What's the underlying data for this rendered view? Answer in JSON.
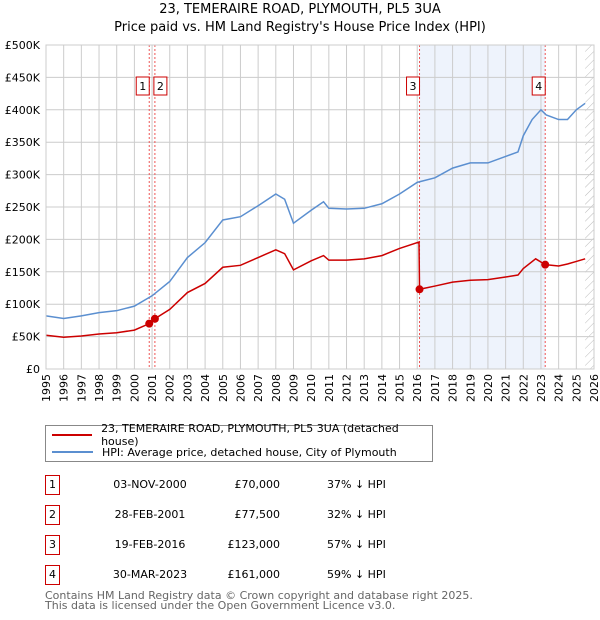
{
  "title": "23, TEMERAIRE ROAD, PLYMOUTH, PL5 3UA",
  "subtitle": "Price paid vs. HM Land Registry's House Price Index (HPI)",
  "chart_data": {
    "type": "line",
    "title": "23, TEMERAIRE ROAD, PLYMOUTH, PL5 3UA",
    "subtitle": "Price paid vs. HM Land Registry's House Price Index (HPI)",
    "xlim": [
      1995,
      2026
    ],
    "ylim": [
      0,
      500000
    ],
    "grid": true,
    "x_ticks": [
      "1995",
      "1996",
      "1997",
      "1998",
      "1999",
      "2000",
      "2001",
      "2002",
      "2003",
      "2004",
      "2005",
      "2006",
      "2007",
      "2008",
      "2009",
      "2010",
      "2011",
      "2012",
      "2013",
      "2014",
      "2015",
      "2016",
      "2017",
      "2018",
      "2019",
      "2020",
      "2021",
      "2022",
      "2023",
      "2024",
      "2025",
      "2026"
    ],
    "y_ticks": [
      {
        "v": 0,
        "label": "£0"
      },
      {
        "v": 50000,
        "label": "£50K"
      },
      {
        "v": 100000,
        "label": "£100K"
      },
      {
        "v": 150000,
        "label": "£150K"
      },
      {
        "v": 200000,
        "label": "£200K"
      },
      {
        "v": 250000,
        "label": "£250K"
      },
      {
        "v": 300000,
        "label": "£300K"
      },
      {
        "v": 350000,
        "label": "£350K"
      },
      {
        "v": 400000,
        "label": "£400K"
      },
      {
        "v": 450000,
        "label": "£450K"
      },
      {
        "v": 500000,
        "label": "£500K"
      }
    ],
    "shaded_range": [
      2016.13,
      2023.24
    ],
    "forecast_hatch_from": 2025.5,
    "series": [
      {
        "name": "23, TEMERAIRE ROAD, PLYMOUTH, PL5 3UA (detached house)",
        "color": "#cc0000",
        "points": [
          [
            1995,
            52000
          ],
          [
            1996,
            49000
          ],
          [
            1997,
            51000
          ],
          [
            1998,
            54000
          ],
          [
            1999,
            56000
          ],
          [
            2000,
            60000
          ],
          [
            2000.84,
            70000
          ],
          [
            2001.16,
            77500
          ],
          [
            2002,
            92000
          ],
          [
            2003,
            118000
          ],
          [
            2004,
            132000
          ],
          [
            2005,
            157000
          ],
          [
            2006,
            160000
          ],
          [
            2007,
            172000
          ],
          [
            2008,
            184000
          ],
          [
            2008.5,
            178000
          ],
          [
            2009,
            153000
          ],
          [
            2010,
            167000
          ],
          [
            2010.7,
            175000
          ],
          [
            2011,
            168000
          ],
          [
            2012,
            168000
          ],
          [
            2013,
            170000
          ],
          [
            2014,
            175000
          ],
          [
            2015,
            186000
          ],
          [
            2016.1,
            196000
          ],
          [
            2016.13,
            123000
          ],
          [
            2017,
            128000
          ],
          [
            2018,
            134000
          ],
          [
            2019,
            137000
          ],
          [
            2020,
            138000
          ],
          [
            2021,
            142000
          ],
          [
            2021.7,
            145000
          ],
          [
            2022,
            155000
          ],
          [
            2022.7,
            170000
          ],
          [
            2023.24,
            161000
          ],
          [
            2024,
            159000
          ],
          [
            2024.5,
            162000
          ],
          [
            2025,
            166000
          ],
          [
            2025.5,
            170000
          ]
        ]
      },
      {
        "name": "HPI: Average price, detached house, City of Plymouth",
        "color": "#5b8fd0",
        "points": [
          [
            1995,
            82000
          ],
          [
            1996,
            78000
          ],
          [
            1997,
            82000
          ],
          [
            1998,
            87000
          ],
          [
            1999,
            90000
          ],
          [
            2000,
            97000
          ],
          [
            2001,
            113000
          ],
          [
            2002,
            135000
          ],
          [
            2003,
            172000
          ],
          [
            2004,
            195000
          ],
          [
            2005,
            230000
          ],
          [
            2006,
            235000
          ],
          [
            2007,
            252000
          ],
          [
            2008,
            270000
          ],
          [
            2008.5,
            262000
          ],
          [
            2009,
            225000
          ],
          [
            2010,
            245000
          ],
          [
            2010.7,
            258000
          ],
          [
            2011,
            248000
          ],
          [
            2012,
            247000
          ],
          [
            2013,
            248000
          ],
          [
            2014,
            255000
          ],
          [
            2015,
            270000
          ],
          [
            2016,
            288000
          ],
          [
            2017,
            295000
          ],
          [
            2018,
            310000
          ],
          [
            2019,
            318000
          ],
          [
            2020,
            318000
          ],
          [
            2021,
            328000
          ],
          [
            2021.7,
            335000
          ],
          [
            2022,
            360000
          ],
          [
            2022.5,
            385000
          ],
          [
            2023,
            400000
          ],
          [
            2023.3,
            392000
          ],
          [
            2024,
            385000
          ],
          [
            2024.5,
            385000
          ],
          [
            2025,
            400000
          ],
          [
            2025.5,
            410000
          ]
        ]
      }
    ],
    "sales": [
      {
        "label": "1",
        "x": 2000.84,
        "value": 70000
      },
      {
        "label": "2",
        "x": 2001.16,
        "value": 77500
      },
      {
        "label": "3",
        "x": 2016.13,
        "value": 123000
      },
      {
        "label": "4",
        "x": 2023.24,
        "value": 161000
      }
    ],
    "legend_position": "bottom"
  },
  "legend": [
    "23, TEMERAIRE ROAD, PLYMOUTH, PL5 3UA (detached house)",
    "HPI: Average price, detached house, City of Plymouth"
  ],
  "colors": {
    "price": "#cc0000",
    "hpi": "#5b8fd0",
    "shade": "#eef3fc"
  },
  "transactions": [
    {
      "num": "1",
      "date": "03-NOV-2000",
      "price": "£70,000",
      "hpi": "37% ↓ HPI"
    },
    {
      "num": "2",
      "date": "28-FEB-2001",
      "price": "£77,500",
      "hpi": "32% ↓ HPI"
    },
    {
      "num": "3",
      "date": "19-FEB-2016",
      "price": "£123,000",
      "hpi": "57% ↓ HPI"
    },
    {
      "num": "4",
      "date": "30-MAR-2023",
      "price": "£161,000",
      "hpi": "59% ↓ HPI"
    }
  ],
  "footer": [
    "Contains HM Land Registry data © Crown copyright and database right 2025.",
    "This data is licensed under the Open Government Licence v3.0."
  ]
}
